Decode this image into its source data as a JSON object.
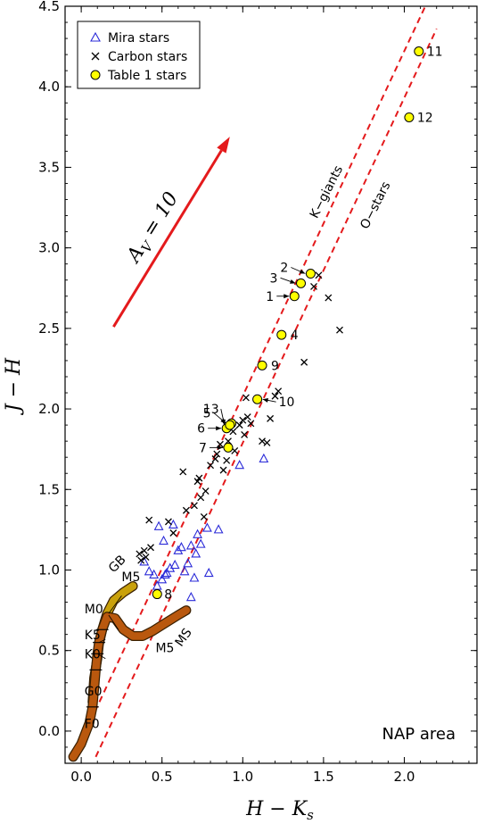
{
  "chart_data": {
    "type": "scatter",
    "xlabel": "H − K",
    "xlabel_sub": "s",
    "ylabel": "J − H",
    "xlim": [
      -0.1,
      2.45
    ],
    "ylim": [
      -0.2,
      4.5
    ],
    "x_ticks": [
      {
        "value": 0.0,
        "label": "0.0"
      },
      {
        "value": 0.5,
        "label": "0.5"
      },
      {
        "value": 1.0,
        "label": "1.0"
      },
      {
        "value": 1.5,
        "label": "1.5"
      },
      {
        "value": 2.0,
        "label": "2.0"
      }
    ],
    "y_ticks": [
      {
        "value": 0.0,
        "label": "0.0"
      },
      {
        "value": 0.5,
        "label": "0.5"
      },
      {
        "value": 1.0,
        "label": "1.0"
      },
      {
        "value": 1.5,
        "label": "1.5"
      },
      {
        "value": 2.0,
        "label": "2.0"
      },
      {
        "value": 2.5,
        "label": "2.5"
      },
      {
        "value": 3.0,
        "label": "3.0"
      },
      {
        "value": 3.5,
        "label": "3.5"
      },
      {
        "value": 4.0,
        "label": "4.0"
      },
      {
        "value": 4.5,
        "label": "4.5"
      }
    ],
    "legend": {
      "placement": "top-left",
      "entries": [
        {
          "name": "Mira stars",
          "marker": "triangle",
          "color": "#2a2ad8"
        },
        {
          "name": "Carbon stars",
          "marker": "x",
          "color": "#000000"
        },
        {
          "name": "Table 1 stars",
          "marker": "circle",
          "color": "#ffff00"
        }
      ]
    },
    "series": [
      {
        "name": "Mira stars",
        "marker": "triangle",
        "points": [
          [
            0.39,
            1.05
          ],
          [
            0.42,
            0.99
          ],
          [
            0.45,
            0.97
          ],
          [
            0.48,
            1.27
          ],
          [
            0.5,
            0.94
          ],
          [
            0.51,
            1.18
          ],
          [
            0.52,
            0.97
          ],
          [
            0.55,
            1.01
          ],
          [
            0.57,
            1.28
          ],
          [
            0.58,
            1.03
          ],
          [
            0.6,
            1.12
          ],
          [
            0.62,
            1.14
          ],
          [
            0.64,
            0.99
          ],
          [
            0.66,
            1.04
          ],
          [
            0.68,
            1.15
          ],
          [
            0.68,
            0.83
          ],
          [
            0.7,
            0.95
          ],
          [
            0.71,
            1.1
          ],
          [
            0.72,
            1.22
          ],
          [
            0.74,
            1.16
          ],
          [
            0.78,
            1.26
          ],
          [
            0.79,
            0.98
          ],
          [
            0.85,
            1.25
          ],
          [
            0.98,
            1.65
          ],
          [
            1.13,
            1.69
          ],
          [
            0.47,
            0.9
          ],
          [
            0.53,
            0.98
          ]
        ]
      },
      {
        "name": "Carbon stars",
        "marker": "x",
        "points": [
          [
            0.36,
            1.1
          ],
          [
            0.37,
            1.06
          ],
          [
            0.39,
            1.12
          ],
          [
            0.4,
            1.08
          ],
          [
            0.42,
            1.31
          ],
          [
            0.43,
            1.14
          ],
          [
            0.54,
            1.3
          ],
          [
            0.57,
            1.23
          ],
          [
            0.63,
            1.61
          ],
          [
            0.65,
            1.37
          ],
          [
            0.7,
            1.4
          ],
          [
            0.72,
            1.55
          ],
          [
            0.73,
            1.57
          ],
          [
            0.74,
            1.45
          ],
          [
            0.76,
            1.33
          ],
          [
            0.77,
            1.49
          ],
          [
            0.8,
            1.65
          ],
          [
            0.83,
            1.69
          ],
          [
            0.84,
            1.72
          ],
          [
            0.86,
            1.78
          ],
          [
            0.88,
            1.62
          ],
          [
            0.9,
            1.68
          ],
          [
            0.91,
            1.8
          ],
          [
            0.95,
            1.74
          ],
          [
            0.98,
            1.9
          ],
          [
            1.0,
            1.93
          ],
          [
            1.02,
            2.07
          ],
          [
            1.03,
            1.95
          ],
          [
            1.05,
            1.91
          ],
          [
            1.12,
            1.8
          ],
          [
            1.15,
            1.79
          ],
          [
            1.17,
            1.94
          ],
          [
            1.2,
            2.08
          ],
          [
            1.22,
            2.11
          ],
          [
            1.01,
            1.84
          ],
          [
            0.94,
            1.86
          ],
          [
            1.38,
            2.29
          ],
          [
            1.44,
            2.76
          ],
          [
            1.47,
            2.83
          ],
          [
            1.53,
            2.69
          ],
          [
            1.6,
            2.49
          ]
        ]
      },
      {
        "name": "Table 1 stars",
        "marker": "circle",
        "points": [
          {
            "x": 1.32,
            "y": 2.7,
            "label": "1"
          },
          {
            "x": 1.42,
            "y": 2.84,
            "label": "2"
          },
          {
            "x": 1.36,
            "y": 2.78,
            "label": "3"
          },
          {
            "x": 1.24,
            "y": 2.46,
            "label": "4"
          },
          {
            "x": 0.93,
            "y": 1.91,
            "label": "5"
          },
          {
            "x": 0.9,
            "y": 1.88,
            "label": "6"
          },
          {
            "x": 0.91,
            "y": 1.76,
            "label": "7"
          },
          {
            "x": 0.47,
            "y": 0.85,
            "label": "8"
          },
          {
            "x": 1.12,
            "y": 2.27,
            "label": "9"
          },
          {
            "x": 1.09,
            "y": 2.06,
            "label": "10"
          },
          {
            "x": 2.09,
            "y": 4.22,
            "label": "11"
          },
          {
            "x": 2.03,
            "y": 3.81,
            "label": "12"
          },
          {
            "x": 0.92,
            "y": 1.9,
            "label": "13"
          }
        ]
      }
    ],
    "reddening_lines": [
      {
        "label": "K−giants",
        "from": [
          0.0,
          -0.06
        ],
        "to": [
          2.13,
          4.5
        ]
      },
      {
        "label": "O−stars",
        "from": [
          0.09,
          -0.16
        ],
        "to": [
          2.2,
          4.36
        ]
      }
    ],
    "reddening_vector": {
      "label": "A",
      "label_sub": "V",
      "label_rest": " = 10",
      "from": [
        0.2,
        2.51
      ],
      "to": [
        0.92,
        3.69
      ]
    },
    "sequences": [
      {
        "name": "main sequence",
        "color": "#b9580e",
        "points": [
          [
            -0.05,
            -0.16
          ],
          [
            0.0,
            -0.08
          ],
          [
            0.05,
            0.05
          ],
          [
            0.07,
            0.15
          ],
          [
            0.08,
            0.26
          ],
          [
            0.09,
            0.38
          ],
          [
            0.1,
            0.48
          ],
          [
            0.11,
            0.55
          ],
          [
            0.13,
            0.63
          ],
          [
            0.16,
            0.71
          ],
          [
            0.21,
            0.7
          ],
          [
            0.26,
            0.63
          ],
          [
            0.32,
            0.59
          ],
          [
            0.38,
            0.59
          ],
          [
            0.44,
            0.62
          ],
          [
            0.52,
            0.67
          ],
          [
            0.6,
            0.72
          ],
          [
            0.65,
            0.75
          ]
        ]
      },
      {
        "name": "giant branch",
        "color": "#c9a10c",
        "points": [
          [
            0.07,
            0.18
          ],
          [
            0.08,
            0.33
          ],
          [
            0.1,
            0.45
          ],
          [
            0.11,
            0.54
          ],
          [
            0.13,
            0.63
          ],
          [
            0.16,
            0.73
          ],
          [
            0.2,
            0.81
          ],
          [
            0.26,
            0.86
          ],
          [
            0.32,
            0.9
          ]
        ]
      }
    ],
    "sequence_labels": [
      {
        "text": "GB",
        "at": [
          0.2,
          0.98
        ],
        "rotation": -45
      },
      {
        "text": "M5",
        "at": [
          0.25,
          0.93
        ]
      },
      {
        "text": "M0",
        "at": [
          0.02,
          0.73
        ]
      },
      {
        "text": "K5",
        "at": [
          0.02,
          0.57
        ]
      },
      {
        "text": "K0",
        "at": [
          0.02,
          0.45
        ]
      },
      {
        "text": "G0",
        "at": [
          0.02,
          0.22
        ]
      },
      {
        "text": "F0",
        "at": [
          0.02,
          0.02
        ]
      },
      {
        "text": "MS",
        "at": [
          0.62,
          0.52
        ],
        "rotation": -55
      },
      {
        "text": "M5",
        "at": [
          0.46,
          0.49
        ]
      }
    ],
    "area_label": "NAP area"
  }
}
